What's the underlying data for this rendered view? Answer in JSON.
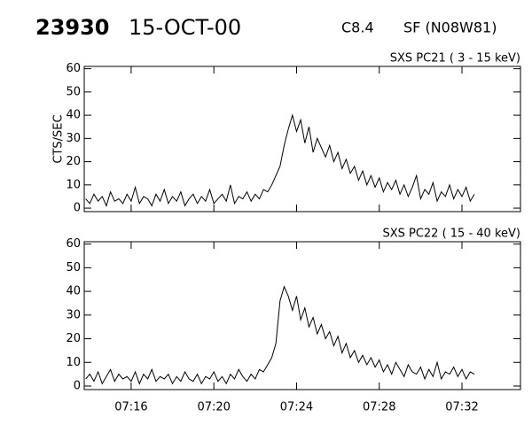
{
  "header": {
    "id": "23930",
    "date": "15-OCT-00",
    "class": "C8.4",
    "location": "SF (N08W81)"
  },
  "chart_data": [
    {
      "type": "line",
      "title": "SXS PC21  (  3 - 15 keV)",
      "y_label": "CTS/SEC",
      "xlim": [
        433.73,
        454.83
      ],
      "xticks": [
        436,
        440,
        444,
        448,
        452
      ],
      "ylim": [
        -1.5,
        61
      ],
      "yticks": [
        0,
        10,
        20,
        30,
        40,
        50,
        60
      ],
      "series": [
        {
          "color": "#000000",
          "x": [
            433.8,
            434,
            434.2,
            434.4,
            434.6,
            434.8,
            435,
            435.2,
            435.4,
            435.6,
            435.8,
            436,
            436.2,
            436.4,
            436.6,
            436.8,
            437,
            437.2,
            437.4,
            437.6,
            437.8,
            438,
            438.2,
            438.4,
            438.6,
            438.8,
            439,
            439.2,
            439.4,
            439.6,
            439.8,
            440,
            440.2,
            440.4,
            440.6,
            440.8,
            441,
            441.2,
            441.4,
            441.6,
            441.8,
            442,
            442.2,
            442.4,
            442.6,
            442.8,
            443,
            443.2,
            443.4,
            443.6,
            443.8,
            444,
            444.2,
            444.4,
            444.6,
            444.8,
            445,
            445.2,
            445.4,
            445.6,
            445.8,
            446,
            446.2,
            446.4,
            446.6,
            446.8,
            447,
            447.2,
            447.4,
            447.6,
            447.8,
            448,
            448.2,
            448.4,
            448.6,
            448.8,
            449,
            449.2,
            449.4,
            449.6,
            449.8,
            450,
            450.2,
            450.4,
            450.6,
            450.8,
            451,
            451.2,
            451.4,
            451.6,
            451.8,
            452,
            452.2,
            452.4,
            452.6
          ],
          "values": [
            4,
            2,
            6,
            3,
            5,
            1,
            7,
            3,
            4,
            2,
            6,
            3,
            9,
            2,
            5,
            4,
            1,
            6,
            3,
            8,
            2,
            5,
            3,
            7,
            1,
            4,
            6,
            2,
            5,
            3,
            8,
            2,
            4,
            6,
            3,
            10,
            2,
            5,
            4,
            7,
            3,
            6,
            4,
            8,
            7,
            10,
            14,
            18,
            27,
            34,
            40,
            33,
            38,
            28,
            35,
            24,
            30,
            26,
            22,
            27,
            20,
            24,
            17,
            21,
            15,
            18,
            12,
            16,
            10,
            14,
            9,
            13,
            7,
            11,
            8,
            12,
            6,
            10,
            5,
            9,
            14,
            4,
            8,
            6,
            11,
            3,
            7,
            5,
            10,
            4,
            8,
            5,
            9,
            3,
            6
          ]
        }
      ]
    },
    {
      "type": "line",
      "title": "SXS PC22  ( 15 - 40 keV)",
      "xlim": [
        433.73,
        454.83
      ],
      "xticks": [
        {
          "value": 436,
          "label": "07:16"
        },
        {
          "value": 440,
          "label": "07:20"
        },
        {
          "value": 444,
          "label": "07:24"
        },
        {
          "value": 448,
          "label": "07:28"
        },
        {
          "value": 452,
          "label": "07:32"
        }
      ],
      "ylim": [
        -1.5,
        61
      ],
      "yticks": [
        0,
        10,
        20,
        30,
        40,
        50,
        60
      ],
      "series": [
        {
          "color": "#000000",
          "x": [
            433.8,
            434,
            434.2,
            434.4,
            434.6,
            434.8,
            435,
            435.2,
            435.4,
            435.6,
            435.8,
            436,
            436.2,
            436.4,
            436.6,
            436.8,
            437,
            437.2,
            437.4,
            437.6,
            437.8,
            438,
            438.2,
            438.4,
            438.6,
            438.8,
            439,
            439.2,
            439.4,
            439.6,
            439.8,
            440,
            440.2,
            440.4,
            440.6,
            440.8,
            441,
            441.2,
            441.4,
            441.6,
            441.8,
            442,
            442.2,
            442.4,
            442.6,
            442.8,
            443,
            443.2,
            443.4,
            443.6,
            443.8,
            444,
            444.2,
            444.4,
            444.6,
            444.8,
            445,
            445.2,
            445.4,
            445.6,
            445.8,
            446,
            446.2,
            446.4,
            446.6,
            446.8,
            447,
            447.2,
            447.4,
            447.6,
            447.8,
            448,
            448.2,
            448.4,
            448.6,
            448.8,
            449,
            449.2,
            449.4,
            449.6,
            449.8,
            450,
            450.2,
            450.4,
            450.6,
            450.8,
            451,
            451.2,
            451.4,
            451.6,
            451.8,
            452,
            452.2,
            452.4,
            452.6
          ],
          "values": [
            3,
            5,
            2,
            6,
            1,
            4,
            7,
            2,
            5,
            3,
            4,
            2,
            6,
            1,
            5,
            3,
            7,
            2,
            4,
            3,
            5,
            1,
            4,
            2,
            6,
            3,
            2,
            5,
            1,
            4,
            3,
            6,
            2,
            4,
            1,
            5,
            3,
            7,
            4,
            2,
            5,
            3,
            7,
            6,
            9,
            12,
            18,
            36,
            42,
            38,
            32,
            38,
            28,
            33,
            25,
            29,
            22,
            26,
            20,
            23,
            17,
            21,
            14,
            18,
            12,
            15,
            10,
            13,
            9,
            12,
            8,
            11,
            6,
            9,
            5,
            10,
            7,
            4,
            9,
            6,
            5,
            8,
            3,
            7,
            4,
            10,
            3,
            6,
            5,
            8,
            4,
            7,
            3,
            6,
            5
          ]
        }
      ]
    }
  ]
}
